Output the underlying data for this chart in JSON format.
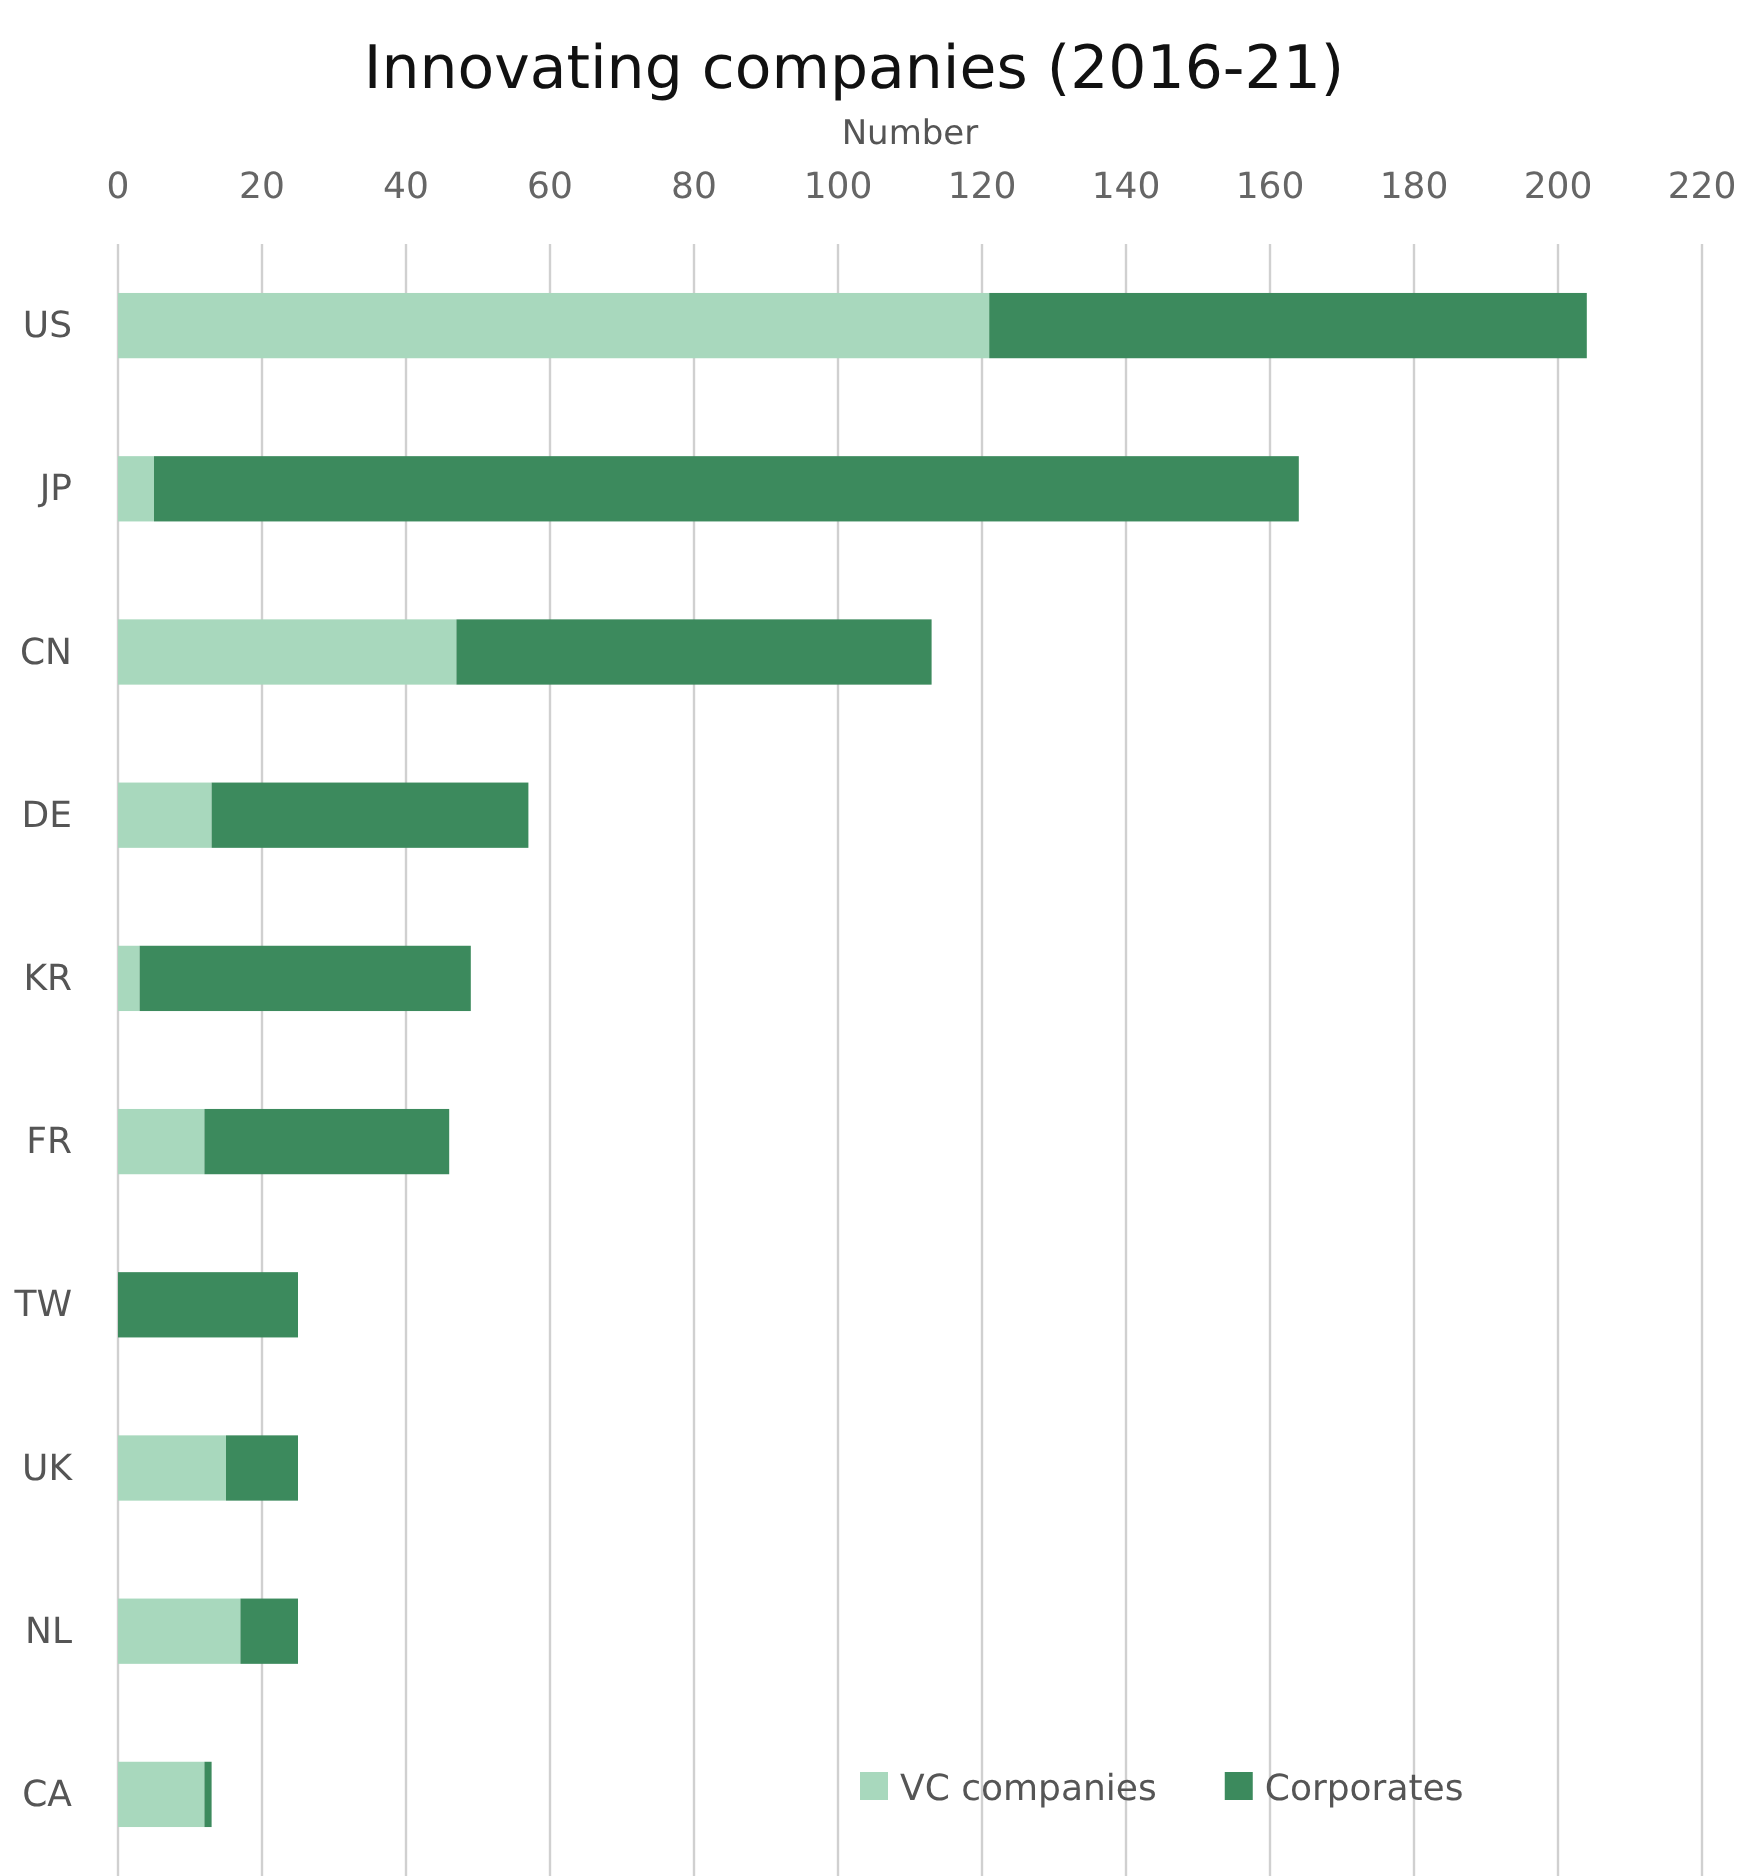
{
  "chart_data": {
    "type": "bar",
    "orientation": "horizontal",
    "stacked": true,
    "title": "Innovating companies (2016-21)",
    "xlabel": "Number",
    "categories": [
      "US",
      "JP",
      "CN",
      "DE",
      "KR",
      "FR",
      "TW",
      "UK",
      "NL",
      "CA"
    ],
    "series": [
      {
        "name": "VC companies",
        "color": "#a8d8bd",
        "values": [
          121,
          5,
          47,
          13,
          3,
          12,
          0,
          15,
          17,
          12
        ]
      },
      {
        "name": "Corporates",
        "color": "#3c8a5d",
        "values": [
          83,
          159,
          66,
          44,
          46,
          34,
          25,
          10,
          8,
          1
        ]
      }
    ],
    "xlim": [
      0,
      220
    ],
    "xticks": [
      0,
      20,
      40,
      60,
      80,
      100,
      120,
      140,
      160,
      180,
      200,
      220
    ],
    "grid": "x",
    "legend": "bottom right"
  }
}
